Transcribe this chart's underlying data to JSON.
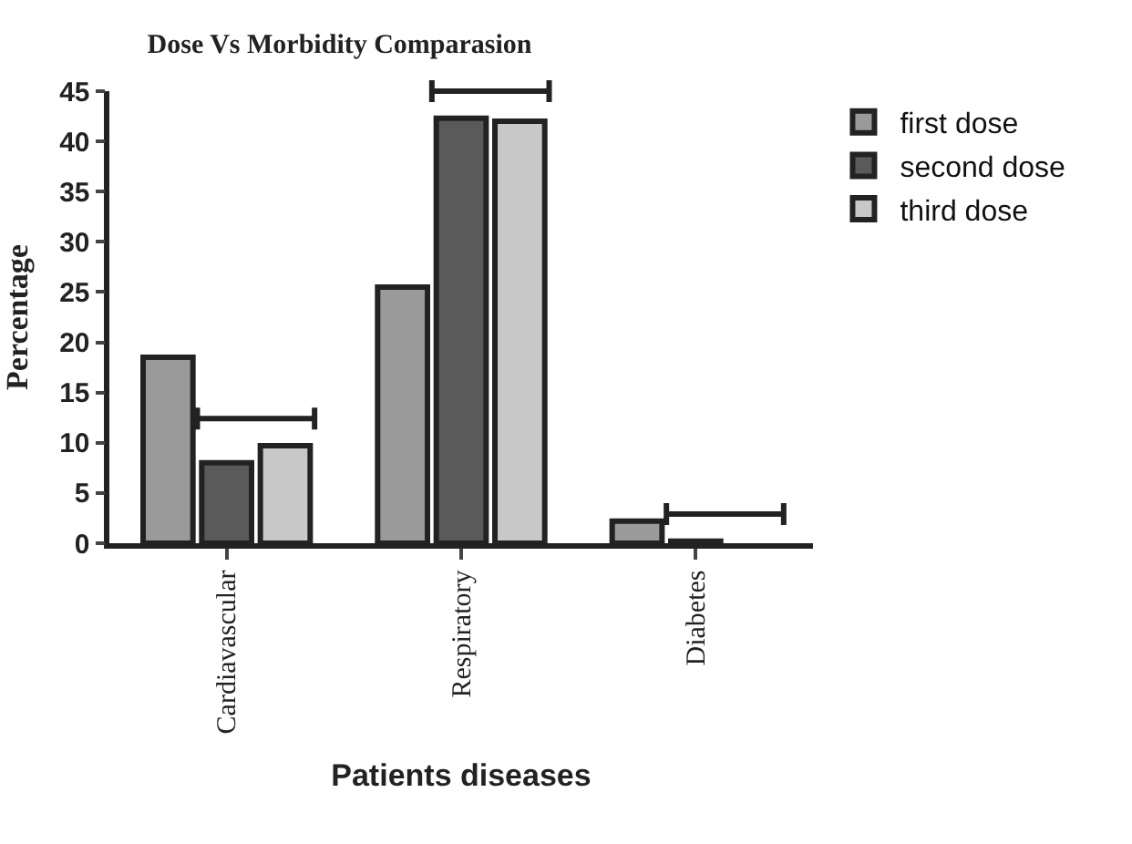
{
  "chart_data": {
    "type": "bar",
    "title": "Dose Vs Morbidity Comparasion",
    "xlabel": "Patients diseases",
    "ylabel": "Percentage",
    "categories": [
      "Cardiavascular",
      "Respiratory",
      "Diabetes"
    ],
    "series": [
      {
        "name": "first dose",
        "color": "#9a9a9a",
        "values": [
          18.5,
          25.5,
          2.2
        ]
      },
      {
        "name": "second dose",
        "color": "#5a5a5a",
        "values": [
          8,
          42.3,
          0.2
        ]
      },
      {
        "name": "third dose",
        "color": "#c8c8c8",
        "values": [
          9.7,
          42,
          null
        ]
      }
    ],
    "ylim": [
      0,
      45
    ],
    "yticks": [
      0,
      5,
      10,
      15,
      20,
      25,
      30,
      35,
      40,
      45
    ],
    "grid": false,
    "legend": "top right"
  }
}
